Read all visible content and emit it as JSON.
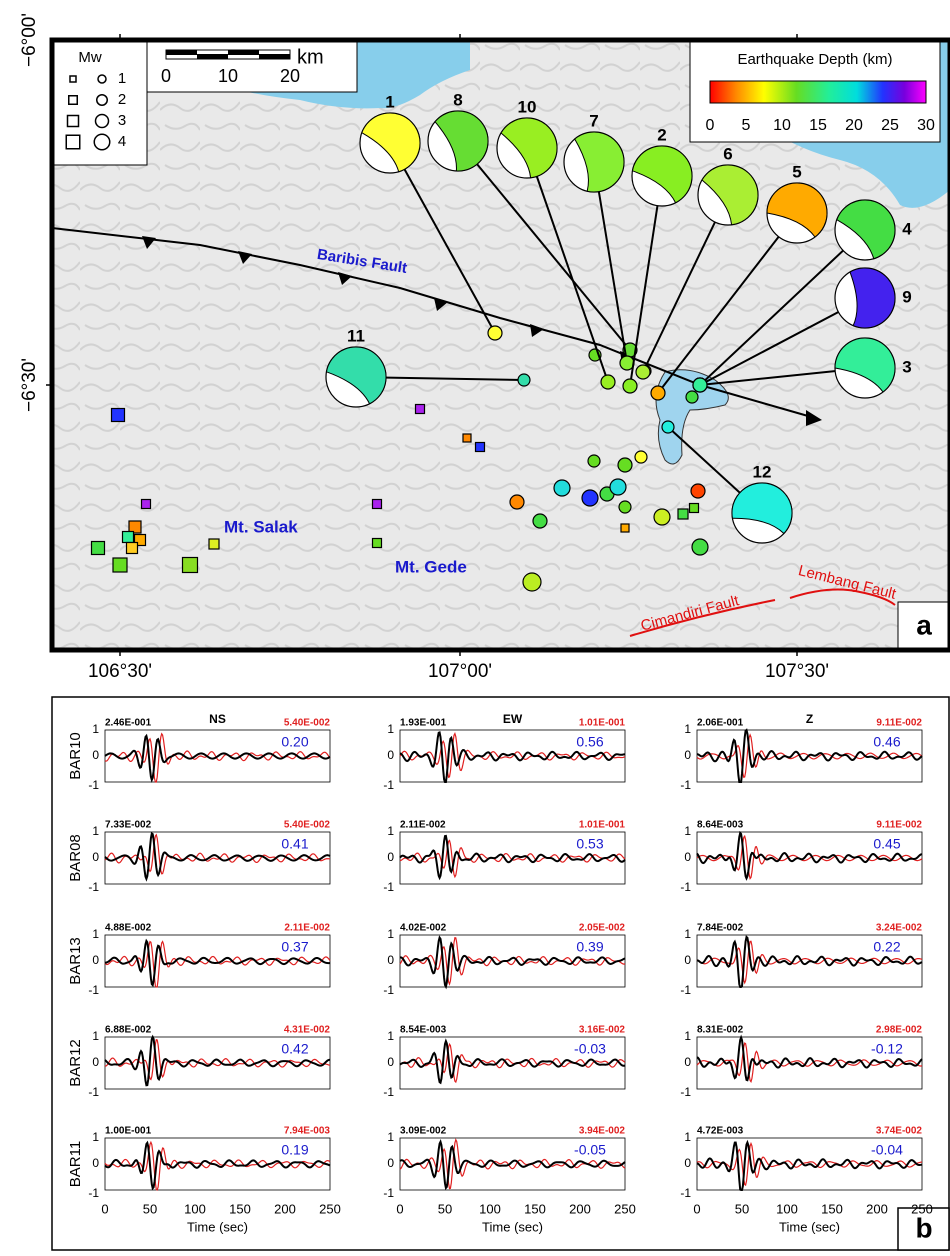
{
  "map": {
    "lat_labels": [
      "−6°00'",
      "−6°30'"
    ],
    "lon_labels": [
      "106°30'",
      "107°00'",
      "107°30'"
    ],
    "legend": {
      "title": "Mw",
      "sizes": [
        "1",
        "2",
        "3",
        "4"
      ]
    },
    "scale_bar": {
      "ticks": [
        "0",
        "10",
        "20"
      ],
      "unit": "km"
    },
    "depth_colorbar": {
      "title": "Earthquake Depth (km)",
      "ticks": [
        "0",
        "5",
        "10",
        "15",
        "20",
        "25",
        "30"
      ]
    },
    "events": [
      "1",
      "8",
      "10",
      "7",
      "2",
      "6",
      "5",
      "4",
      "9",
      "3",
      "11",
      "12"
    ],
    "faults": [
      "Baribis Fault",
      "Cimandiri Fault",
      "Lembang Fault"
    ],
    "volcanoes": [
      "Mt. Salak",
      "Mt. Gede"
    ],
    "panel_label": "a"
  },
  "waveforms": {
    "components": [
      "NS",
      "EW",
      "Z"
    ],
    "stations": [
      {
        "name": "BAR10",
        "panels": [
          {
            "obs": "2.46E-001",
            "syn": "5.40E-002",
            "corr": "0.20"
          },
          {
            "obs": "1.93E-001",
            "syn": "1.01E-001",
            "corr": "0.56"
          },
          {
            "obs": "2.06E-001",
            "syn": "9.11E-002",
            "corr": "0.46"
          }
        ]
      },
      {
        "name": "BAR08",
        "panels": [
          {
            "obs": "7.33E-002",
            "syn": "5.40E-002",
            "corr": "0.41"
          },
          {
            "obs": "2.11E-002",
            "syn": "1.01E-001",
            "corr": "0.53"
          },
          {
            "obs": "8.64E-003",
            "syn": "9.11E-002",
            "corr": "0.45"
          }
        ]
      },
      {
        "name": "BAR13",
        "panels": [
          {
            "obs": "4.88E-002",
            "syn": "2.11E-002",
            "corr": "0.37"
          },
          {
            "obs": "4.02E-002",
            "syn": "2.05E-002",
            "corr": "0.39"
          },
          {
            "obs": "7.84E-002",
            "syn": "3.24E-002",
            "corr": "0.22"
          }
        ]
      },
      {
        "name": "BAR12",
        "panels": [
          {
            "obs": "6.88E-002",
            "syn": "4.31E-002",
            "corr": "0.42"
          },
          {
            "obs": "8.54E-003",
            "syn": "3.16E-002",
            "corr": "-0.03"
          },
          {
            "obs": "8.31E-002",
            "syn": "2.98E-002",
            "corr": "-0.12"
          }
        ]
      },
      {
        "name": "BAR11",
        "panels": [
          {
            "obs": "1.00E-001",
            "syn": "7.94E-003",
            "corr": "0.19"
          },
          {
            "obs": "3.09E-002",
            "syn": "3.94E-002",
            "corr": "-0.05"
          },
          {
            "obs": "4.72E-003",
            "syn": "3.74E-002",
            "corr": "-0.04"
          }
        ]
      }
    ],
    "yticks": [
      "1",
      "0",
      "-1"
    ],
    "xticks": [
      "0",
      "50",
      "100",
      "150",
      "200",
      "250"
    ],
    "xlabel": "Time (sec)",
    "panel_label": "b"
  }
}
